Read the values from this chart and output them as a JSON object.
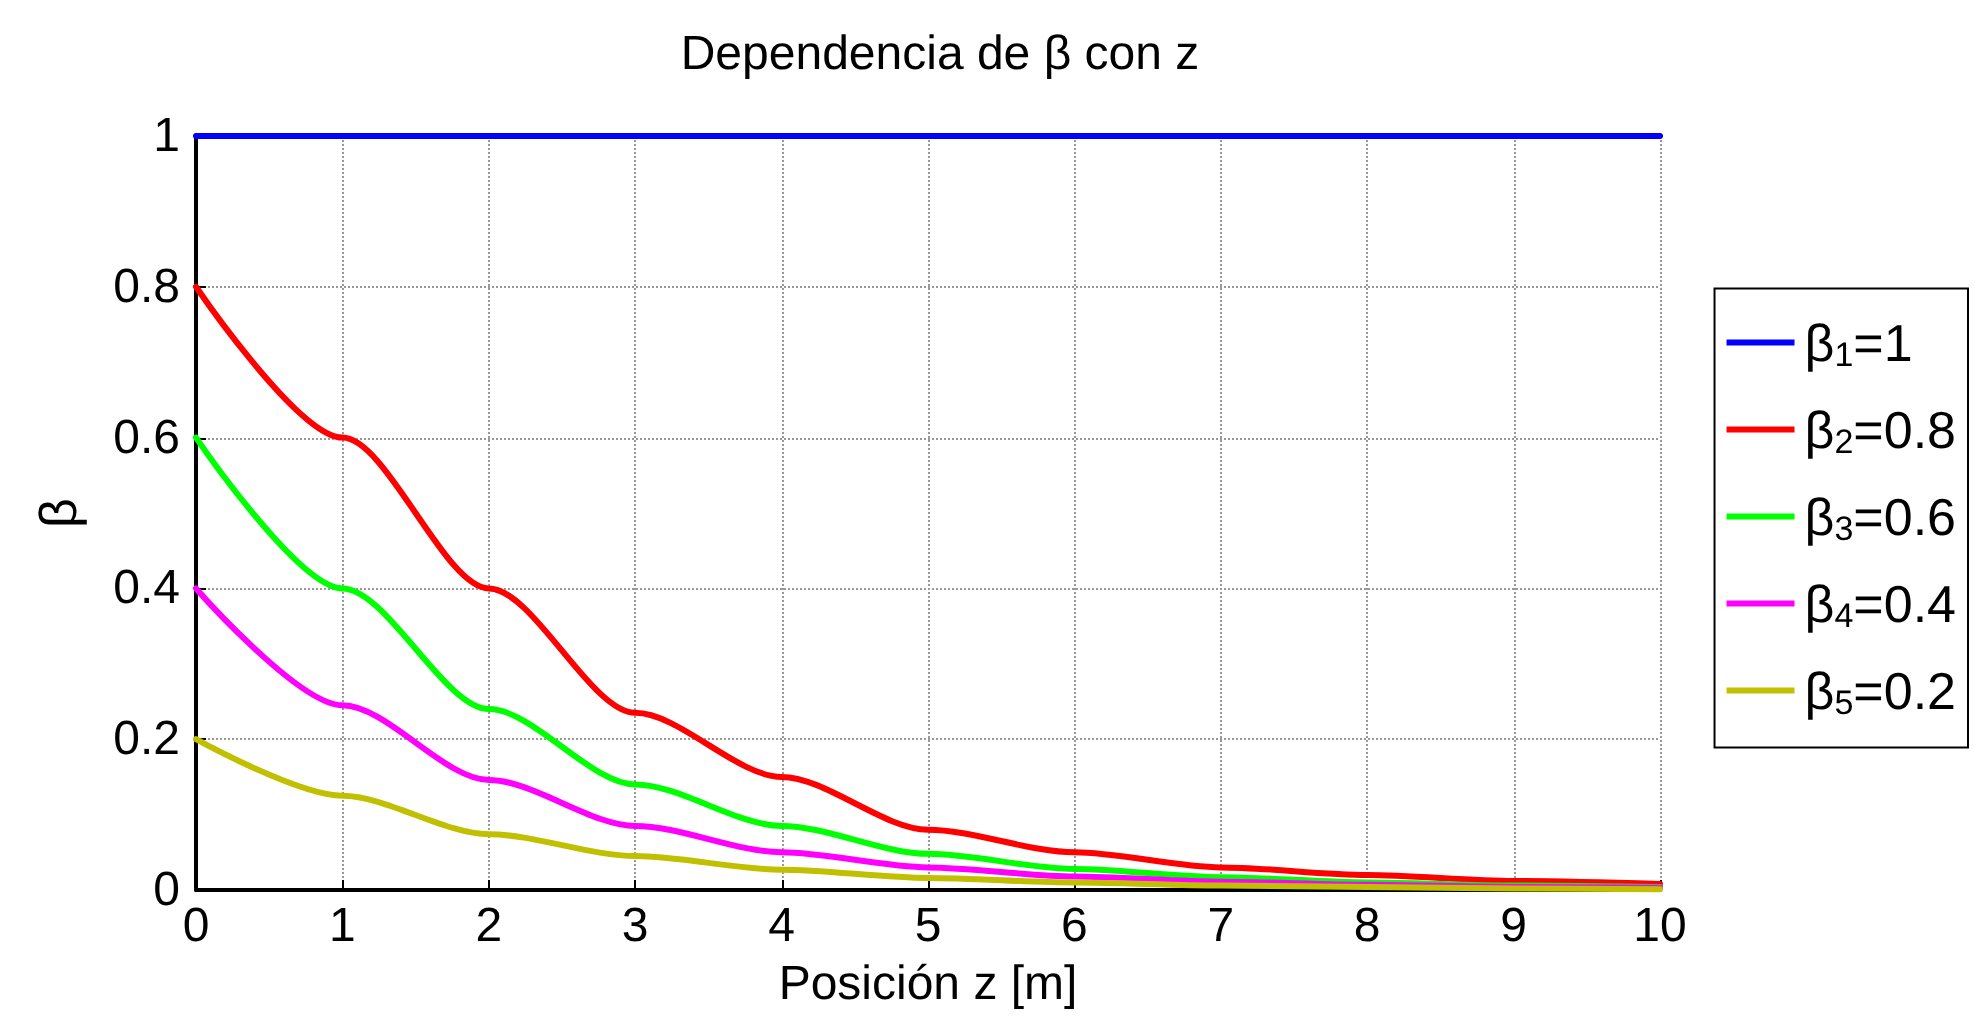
{
  "chart_data": {
    "type": "line",
    "title": "Dependencia de β con z",
    "xlabel": "Posición z [m]",
    "ylabel": "β",
    "x": [
      0,
      1,
      2,
      3,
      4,
      5,
      6,
      7,
      8,
      9,
      10
    ],
    "series": [
      {
        "name": "β$_{1}$=1",
        "color": "#0000ff",
        "values": [
          1,
          1,
          1,
          1,
          1,
          1,
          1,
          1,
          1,
          1,
          1
        ]
      },
      {
        "name": "β$_{2}$=0.8",
        "color": "#ff0000",
        "values": [
          0.8,
          0.6,
          0.4,
          0.235,
          0.15,
          0.08,
          0.05,
          0.03,
          0.02,
          0.012,
          0.008
        ]
      },
      {
        "name": "β$_{3}$=0.6",
        "color": "#00ff00",
        "values": [
          0.6,
          0.4,
          0.24,
          0.14,
          0.085,
          0.048,
          0.028,
          0.017,
          0.01,
          0.006,
          0.004
        ]
      },
      {
        "name": "β$_{4}$=0.4",
        "color": "#ff00ff",
        "values": [
          0.4,
          0.245,
          0.146,
          0.085,
          0.05,
          0.03,
          0.018,
          0.011,
          0.007,
          0.004,
          0.003
        ]
      },
      {
        "name": "β$_{5}$=0.2",
        "color": "#c0c000",
        "values": [
          0.2,
          0.125,
          0.074,
          0.045,
          0.027,
          0.016,
          0.01,
          0.006,
          0.004,
          0.002,
          0.001
        ]
      }
    ],
    "xlim": [
      0,
      10
    ],
    "xticks": [
      0,
      1,
      2,
      3,
      4,
      5,
      6,
      7,
      8,
      9,
      10
    ],
    "ylim": [
      0,
      1
    ],
    "yticks": [
      0,
      0.2,
      0.4,
      0.6,
      0.8,
      1
    ],
    "grid": true,
    "legend": "right",
    "marker": "none",
    "line_style": "solid"
  }
}
